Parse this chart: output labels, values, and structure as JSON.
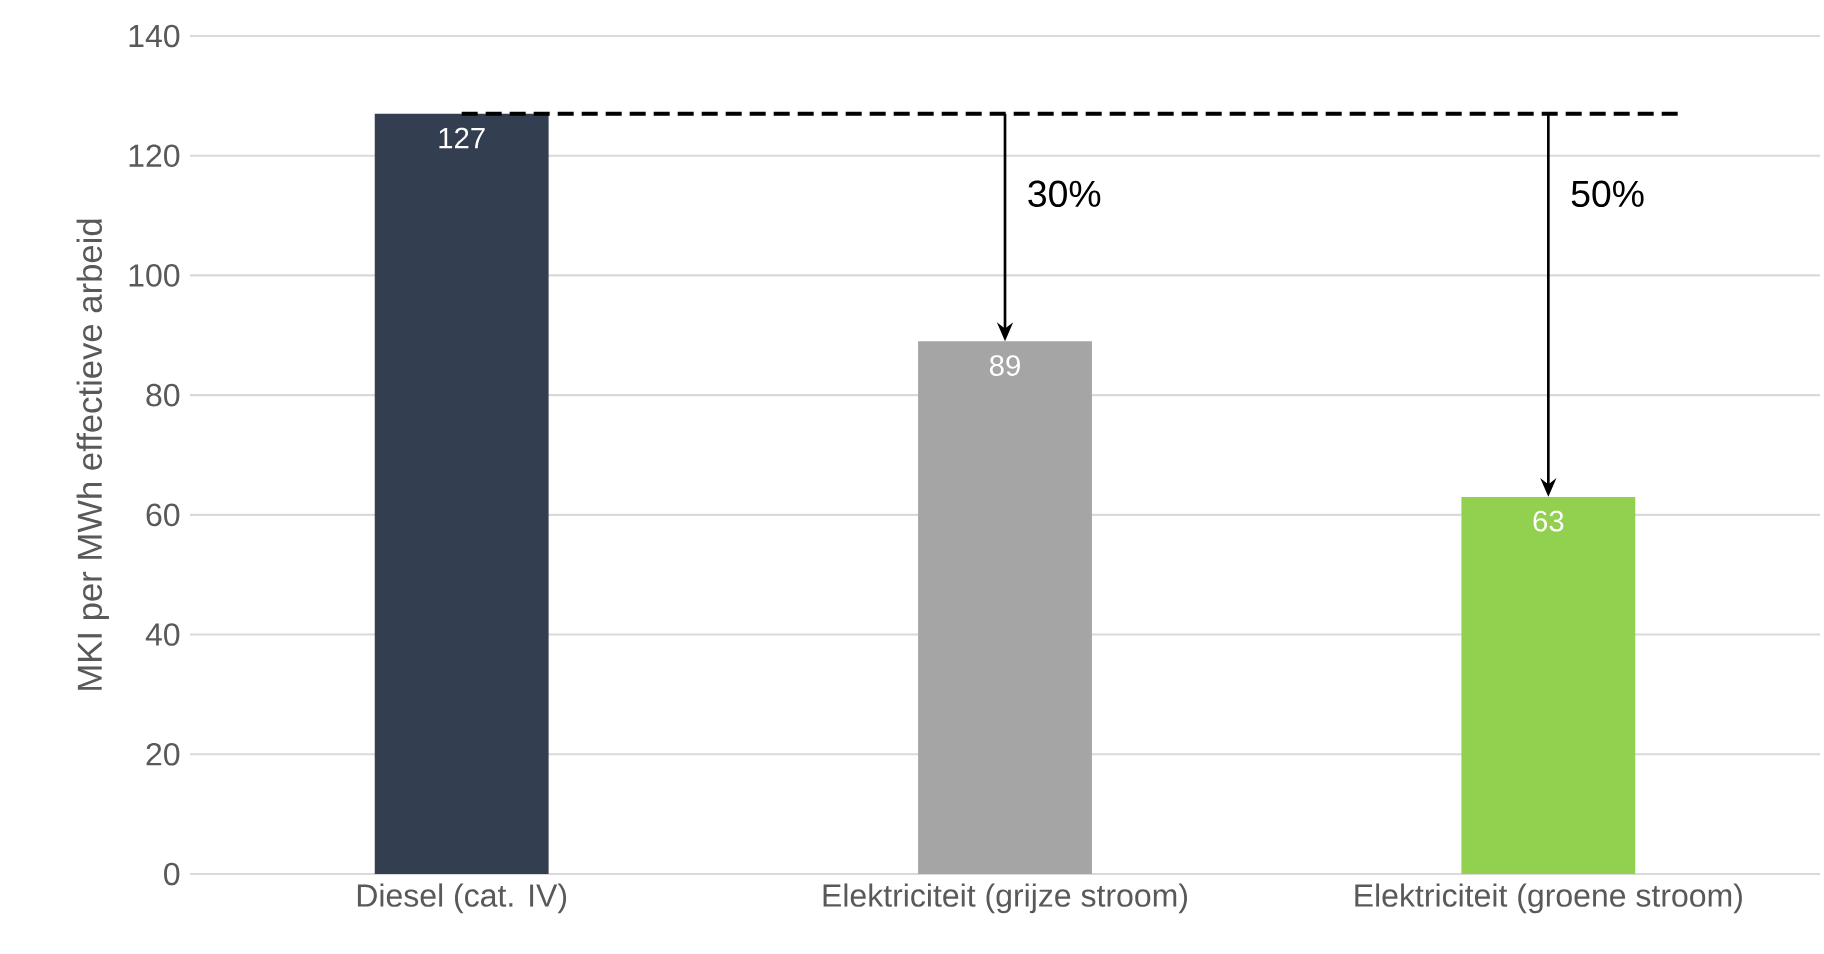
{
  "chart_data": {
    "type": "bar",
    "ylabel": "MKI per MWh effectieve arbeid",
    "categories": [
      "Diesel (cat. IV)",
      "Elektriciteit (grijze stroom)",
      "Elektriciteit (groene stroom)"
    ],
    "values": [
      127,
      89,
      63
    ],
    "colors": [
      "#333f50",
      "#a5a5a5",
      "#92d050"
    ],
    "ylim": [
      0,
      140
    ],
    "yticks": [
      0,
      20,
      40,
      60,
      80,
      100,
      120,
      140
    ],
    "grid": "y",
    "data_labels": true,
    "ref_lines": [
      {
        "axis": "y",
        "value": 127,
        "line_style": "dashed",
        "color": "#000000"
      }
    ],
    "annotations": [
      "30%",
      "50%"
    ]
  }
}
